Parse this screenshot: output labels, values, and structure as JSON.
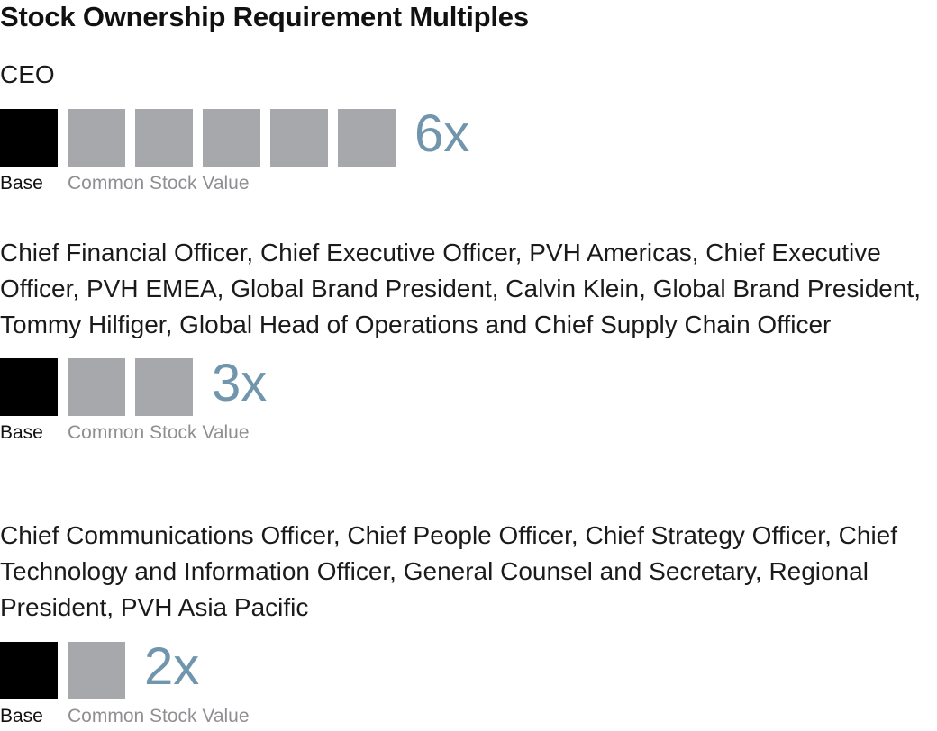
{
  "title": "Stock Ownership Requirement Multiples",
  "colors": {
    "base": "#000000",
    "stock": "#a7a8ab",
    "multiple_text": "#7195ac",
    "stock_label": "#8e8f92"
  },
  "legend": {
    "base_label": "Base",
    "stock_label": "Common Stock Value"
  },
  "groups": [
    {
      "roles": "CEO",
      "multiple_label": "6x"
    },
    {
      "roles": "Chief Financial Officer, Chief Executive Officer, PVH Americas, Chief Executive Officer, PVH EMEA, Global Brand President, Calvin Klein, Global Brand President, Tommy Hilfiger, Global Head of Operations and Chief Supply Chain Officer",
      "multiple_label": "3x"
    },
    {
      "roles": "Chief Communications Officer, Chief People Officer, Chief Strategy Officer, Chief Technology and Information Officer, General Counsel and Secretary, Regional President, PVH Asia Pacific",
      "multiple_label": "2x"
    }
  ],
  "chart_data": {
    "type": "bar",
    "title": "Stock Ownership Requirement Multiples",
    "unit": "x",
    "segments": [
      "Base",
      "Common Stock Value"
    ],
    "categories": [
      "CEO",
      "Chief Financial Officer, Chief Executive Officer, PVH Americas, Chief Executive Officer, PVH EMEA, Global Brand President, Calvin Klein, Global Brand President, Tommy Hilfiger, Global Head of Operations and Chief Supply Chain Officer",
      "Chief Communications Officer, Chief People Officer, Chief Strategy Officer, Chief Technology and Information Officer, General Counsel and Secretary, Regional President, PVH Asia Pacific"
    ],
    "values": [
      6,
      3,
      2
    ],
    "base_units": [
      1,
      1,
      1
    ]
  }
}
